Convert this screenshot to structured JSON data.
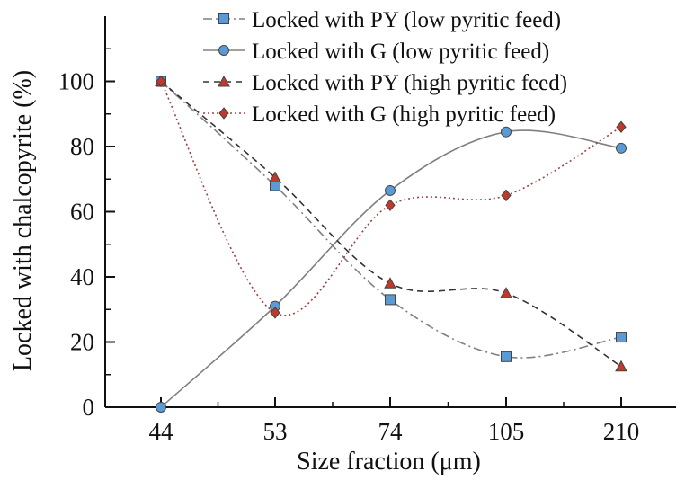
{
  "chart_data": {
    "type": "line",
    "title": "",
    "xlabel": "Size fraction (μm)",
    "ylabel": "Locked with chalcopyrite (%)",
    "categories": [
      "44",
      "53",
      "74",
      "105",
      "210"
    ],
    "ylim": [
      0,
      120
    ],
    "yticks": [
      0,
      20,
      40,
      60,
      80,
      100
    ],
    "grid": false,
    "legend_position": "top-right",
    "series": [
      {
        "name": "Locked with PY (low pyritic feed)",
        "values": [
          100,
          68,
          33,
          15.5,
          21.5
        ],
        "marker": "square",
        "line_style": "dash-dot",
        "line_color": "#808080",
        "marker_color": "#5b9bd5"
      },
      {
        "name": "Locked with G (low pyritic feed)",
        "values": [
          0,
          31,
          66.5,
          84.5,
          79.5
        ],
        "marker": "circle",
        "line_style": "solid",
        "line_color": "#808080",
        "marker_color": "#5b9bd5"
      },
      {
        "name": "Locked with PY (high pyritic feed)",
        "values": [
          100,
          70.5,
          38,
          35,
          12.5
        ],
        "marker": "triangle",
        "line_style": "dashed",
        "line_color": "#333333",
        "marker_color": "#c0392b"
      },
      {
        "name": "Locked with G (high pyritic feed)",
        "values": [
          100,
          29,
          62,
          65,
          86
        ],
        "marker": "diamond",
        "line_style": "dotted",
        "line_color": "#a04040",
        "marker_color": "#c0392b"
      }
    ]
  }
}
